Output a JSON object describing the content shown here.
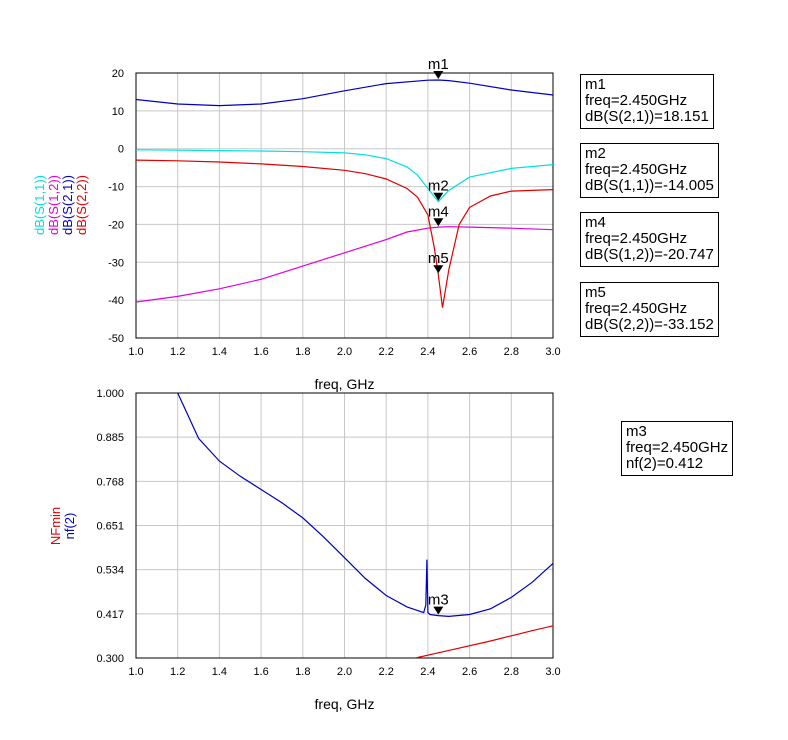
{
  "chart_data": [
    {
      "type": "line",
      "xlabel": "freq, GHz",
      "xlim": [
        1.0,
        3.0
      ],
      "xticks": [
        "1.0",
        "1.2",
        "1.4",
        "1.6",
        "1.8",
        "2.0",
        "2.2",
        "2.4",
        "2.6",
        "2.8",
        "3.0"
      ],
      "ylim": [
        -50,
        20
      ],
      "yticks": [
        "20",
        "10",
        "0",
        "-10",
        "-20",
        "-30",
        "-40",
        "-50"
      ],
      "grid": true,
      "series": [
        {
          "name": "dB(S(1,1))",
          "color": "#00e0e0",
          "x": [
            1.0,
            1.2,
            1.4,
            1.6,
            1.8,
            2.0,
            2.1,
            2.2,
            2.3,
            2.35,
            2.4,
            2.45,
            2.5,
            2.6,
            2.8,
            3.0
          ],
          "y": [
            -0.3,
            -0.4,
            -0.5,
            -0.6,
            -0.8,
            -1.1,
            -1.6,
            -2.6,
            -4.8,
            -7.0,
            -10.5,
            -14.0,
            -11.0,
            -7.5,
            -5.2,
            -4.2
          ]
        },
        {
          "name": "dB(S(1,2))",
          "color": "#e000e0",
          "x": [
            1.0,
            1.2,
            1.4,
            1.6,
            1.8,
            2.0,
            2.2,
            2.3,
            2.4,
            2.45,
            2.5,
            2.6,
            2.8,
            3.0
          ],
          "y": [
            -40.5,
            -39.0,
            -37.0,
            -34.5,
            -31.0,
            -27.5,
            -24.0,
            -22.0,
            -21.0,
            -20.7,
            -20.6,
            -20.7,
            -21.0,
            -21.4
          ]
        },
        {
          "name": "dB(S(2,1))",
          "color": "#0000c0",
          "x": [
            1.0,
            1.2,
            1.4,
            1.6,
            1.8,
            2.0,
            2.2,
            2.4,
            2.45,
            2.5,
            2.6,
            2.8,
            3.0
          ],
          "y": [
            13.0,
            11.8,
            11.4,
            11.8,
            13.2,
            15.3,
            17.2,
            18.1,
            18.15,
            18.0,
            17.3,
            15.5,
            14.2
          ]
        },
        {
          "name": "dB(S(2,2))",
          "color": "#e00000",
          "x": [
            1.0,
            1.2,
            1.4,
            1.6,
            1.8,
            2.0,
            2.1,
            2.2,
            2.3,
            2.35,
            2.4,
            2.43,
            2.45,
            2.47,
            2.5,
            2.55,
            2.6,
            2.7,
            2.8,
            3.0
          ],
          "y": [
            -3.0,
            -3.2,
            -3.5,
            -4.0,
            -4.7,
            -5.7,
            -6.6,
            -8.0,
            -10.5,
            -12.8,
            -17.5,
            -26.0,
            -33.2,
            -42.0,
            -32.0,
            -20.0,
            -15.5,
            -12.5,
            -11.2,
            -10.8
          ]
        }
      ],
      "markers": [
        {
          "label": "m1",
          "series": "dB(S(2,1))",
          "x": 2.45,
          "y": 18.151,
          "color": "#0000c0"
        },
        {
          "label": "m2",
          "series": "dB(S(1,1))",
          "x": 2.45,
          "y": -14.005,
          "color": "#00e0e0"
        },
        {
          "label": "m4",
          "series": "dB(S(1,2))",
          "x": 2.45,
          "y": -20.747,
          "color": "#e000e0"
        },
        {
          "label": "m5",
          "series": "dB(S(2,2))",
          "x": 2.45,
          "y": -33.152,
          "color": "#e00000"
        }
      ]
    },
    {
      "type": "line",
      "xlabel": "freq, GHz",
      "xlim": [
        1.0,
        3.0
      ],
      "xticks": [
        "1.0",
        "1.2",
        "1.4",
        "1.6",
        "1.8",
        "2.0",
        "2.2",
        "2.4",
        "2.6",
        "2.8",
        "3.0"
      ],
      "ylim": [
        0.3,
        1.0
      ],
      "yticks": [
        "1.000",
        "0.885",
        "0.768",
        "0.651",
        "0.534",
        "0.417",
        "0.300"
      ],
      "grid": true,
      "series": [
        {
          "name": "NFmin",
          "color": "#e00000",
          "x": [
            2.34,
            2.5,
            2.7,
            2.9,
            3.0
          ],
          "y": [
            0.3,
            0.32,
            0.345,
            0.372,
            0.385
          ]
        },
        {
          "name": "nf(2)",
          "color": "#0000c0",
          "x": [
            1.2,
            1.3,
            1.4,
            1.5,
            1.6,
            1.7,
            1.8,
            1.9,
            2.0,
            2.1,
            2.2,
            2.3,
            2.38,
            2.39,
            2.395,
            2.4,
            2.41,
            2.45,
            2.5,
            2.6,
            2.7,
            2.8,
            2.9,
            3.0
          ],
          "y": [
            1.0,
            0.88,
            0.82,
            0.78,
            0.745,
            0.71,
            0.67,
            0.62,
            0.565,
            0.51,
            0.465,
            0.435,
            0.42,
            0.44,
            0.56,
            0.42,
            0.415,
            0.412,
            0.41,
            0.415,
            0.43,
            0.46,
            0.5,
            0.55
          ]
        }
      ],
      "markers": [
        {
          "label": "m3",
          "series": "nf(2)",
          "x": 2.45,
          "y": 0.412,
          "color": "#0000c0"
        }
      ]
    }
  ],
  "marker_readouts": {
    "m1": {
      "name": "m1",
      "freq": "freq=2.450GHz",
      "value": "dB(S(2,1))=18.151"
    },
    "m2": {
      "name": "m2",
      "freq": "freq=2.450GHz",
      "value": "dB(S(1,1))=-14.005"
    },
    "m4": {
      "name": "m4",
      "freq": "freq=2.450GHz",
      "value": "dB(S(1,2))=-20.747"
    },
    "m5": {
      "name": "m5",
      "freq": "freq=2.450GHz",
      "value": "dB(S(2,2))=-33.152"
    },
    "m3": {
      "name": "m3",
      "freq": "freq=2.450GHz",
      "value": "nf(2)=0.412"
    }
  }
}
